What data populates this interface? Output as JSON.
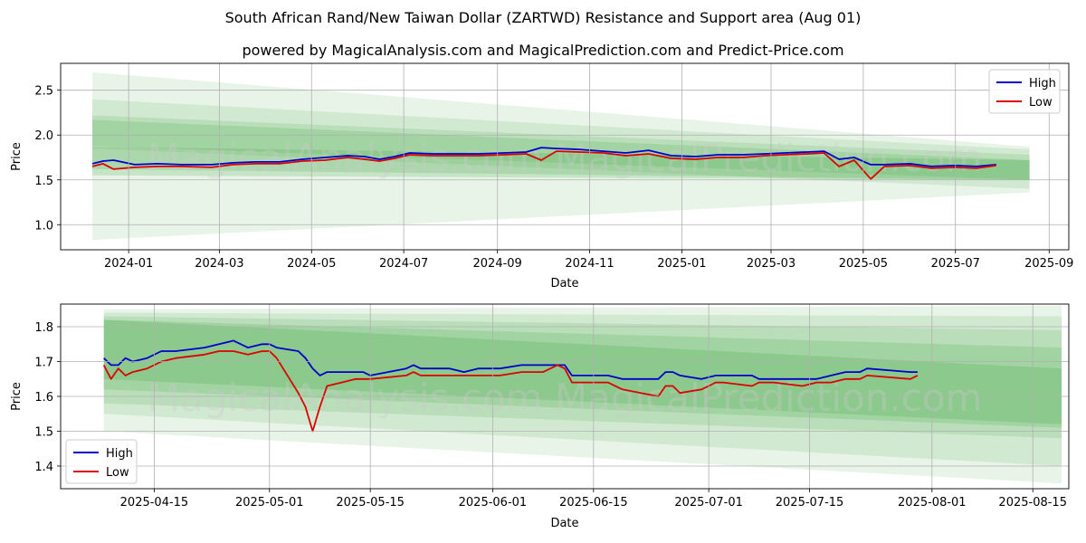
{
  "title": "South African Rand/New Taiwan Dollar (ZARTWD) Resistance and Support area (Aug 01)",
  "subtitle": "powered by MagicalAnalysis.com and MagicalPrediction.com and Predict-Price.com",
  "watermark": "MagicalAnalysis.com    MagicalPrediction.com",
  "colors": {
    "high": "#0000cc",
    "low": "#dd0000",
    "band": "#2e9a2e",
    "grid": "#b0b0b0"
  },
  "chart_data": [
    {
      "type": "line",
      "xlabel": "Date",
      "ylabel": "Price",
      "x_tick_labels": [
        "2024-01",
        "2024-03",
        "2024-05",
        "2024-07",
        "2024-09",
        "2024-11",
        "2025-01",
        "2025-03",
        "2025-05",
        "2025-07",
        "2025-09"
      ],
      "y_ticks": [
        1.0,
        1.5,
        2.0,
        2.5
      ],
      "y_tick_labels": [
        "1.0",
        "1.5",
        "2.0",
        "2.5"
      ],
      "xlim": [
        "2023-11-17",
        "2025-09-14"
      ],
      "ylim": [
        0.72,
        2.8
      ],
      "legend": "top-right",
      "grid": true,
      "series": [
        {
          "name": "High",
          "x": [
            "2023-12-08",
            "2023-12-15",
            "2023-12-22",
            "2024-01-05",
            "2024-01-20",
            "2024-02-05",
            "2024-02-25",
            "2024-03-10",
            "2024-03-25",
            "2024-04-10",
            "2024-04-25",
            "2024-05-10",
            "2024-05-25",
            "2024-06-05",
            "2024-06-15",
            "2024-06-25",
            "2024-07-05",
            "2024-07-20",
            "2024-08-05",
            "2024-08-20",
            "2024-09-05",
            "2024-09-20",
            "2024-09-30",
            "2024-10-10",
            "2024-10-25",
            "2024-11-10",
            "2024-11-25",
            "2024-12-10",
            "2024-12-25",
            "2025-01-10",
            "2025-01-25",
            "2025-02-10",
            "2025-02-25",
            "2025-03-10",
            "2025-03-25",
            "2025-04-05",
            "2025-04-15",
            "2025-04-25",
            "2025-05-06",
            "2025-05-15",
            "2025-06-01",
            "2025-06-15",
            "2025-07-01",
            "2025-07-15",
            "2025-07-28"
          ],
          "values": [
            1.68,
            1.71,
            1.72,
            1.67,
            1.68,
            1.67,
            1.67,
            1.69,
            1.7,
            1.7,
            1.73,
            1.75,
            1.77,
            1.76,
            1.73,
            1.76,
            1.8,
            1.79,
            1.79,
            1.79,
            1.8,
            1.81,
            1.86,
            1.85,
            1.84,
            1.82,
            1.8,
            1.83,
            1.77,
            1.76,
            1.78,
            1.78,
            1.79,
            1.8,
            1.81,
            1.82,
            1.73,
            1.75,
            1.67,
            1.67,
            1.68,
            1.65,
            1.66,
            1.65,
            1.67
          ]
        },
        {
          "name": "Low",
          "x": [
            "2023-12-08",
            "2023-12-15",
            "2023-12-22",
            "2024-01-05",
            "2024-01-20",
            "2024-02-05",
            "2024-02-25",
            "2024-03-10",
            "2024-03-25",
            "2024-04-10",
            "2024-04-25",
            "2024-05-10",
            "2024-05-25",
            "2024-06-05",
            "2024-06-15",
            "2024-06-25",
            "2024-07-05",
            "2024-07-20",
            "2024-08-05",
            "2024-08-20",
            "2024-09-05",
            "2024-09-20",
            "2024-09-30",
            "2024-10-10",
            "2024-10-25",
            "2024-11-10",
            "2024-11-25",
            "2024-12-10",
            "2024-12-25",
            "2025-01-10",
            "2025-01-25",
            "2025-02-10",
            "2025-02-25",
            "2025-03-10",
            "2025-03-25",
            "2025-04-05",
            "2025-04-15",
            "2025-04-25",
            "2025-05-06",
            "2025-05-15",
            "2025-06-01",
            "2025-06-15",
            "2025-07-01",
            "2025-07-15",
            "2025-07-28"
          ],
          "values": [
            1.65,
            1.68,
            1.62,
            1.64,
            1.65,
            1.65,
            1.64,
            1.67,
            1.68,
            1.68,
            1.71,
            1.72,
            1.75,
            1.73,
            1.71,
            1.74,
            1.78,
            1.77,
            1.77,
            1.77,
            1.78,
            1.79,
            1.72,
            1.82,
            1.81,
            1.8,
            1.77,
            1.79,
            1.74,
            1.73,
            1.75,
            1.75,
            1.77,
            1.78,
            1.79,
            1.8,
            1.65,
            1.72,
            1.51,
            1.65,
            1.66,
            1.63,
            1.64,
            1.63,
            1.66
          ]
        }
      ],
      "bands": [
        {
          "x": [
            "2023-12-08",
            "2025-08-19"
          ],
          "upper": [
            2.7,
            1.87
          ],
          "lower": [
            0.83,
            1.36
          ]
        },
        {
          "x": [
            "2023-12-08",
            "2025-08-19"
          ],
          "upper": [
            2.4,
            1.84
          ],
          "lower": [
            1.85,
            1.4
          ]
        },
        {
          "x": [
            "2023-12-08",
            "2025-08-19"
          ],
          "upper": [
            2.22,
            1.78
          ],
          "lower": [
            1.88,
            1.5
          ]
        },
        {
          "x": [
            "2023-12-08",
            "2025-08-19"
          ],
          "upper": [
            2.17,
            1.72
          ],
          "lower": [
            1.62,
            1.5
          ]
        },
        {
          "x": [
            "2023-12-08",
            "2025-08-19"
          ],
          "upper": [
            1.87,
            1.72
          ],
          "lower": [
            1.55,
            1.5
          ]
        }
      ]
    },
    {
      "type": "line",
      "xlabel": "Date",
      "ylabel": "Price",
      "x_tick_labels": [
        "2025-04-15",
        "2025-05-01",
        "2025-05-15",
        "2025-06-01",
        "2025-06-15",
        "2025-07-01",
        "2025-07-15",
        "2025-08-01",
        "2025-08-15"
      ],
      "y_ticks": [
        1.4,
        1.5,
        1.6,
        1.7,
        1.8
      ],
      "y_tick_labels": [
        "1.4",
        "1.5",
        "1.6",
        "1.7",
        "1.8"
      ],
      "xlim": [
        "2025-04-02",
        "2025-08-20"
      ],
      "ylim": [
        1.335,
        1.865
      ],
      "legend": "bottom-left",
      "grid": true,
      "series": [
        {
          "name": "High",
          "x": [
            "2025-04-08",
            "2025-04-09",
            "2025-04-10",
            "2025-04-11",
            "2025-04-12",
            "2025-04-14",
            "2025-04-16",
            "2025-04-18",
            "2025-04-22",
            "2025-04-24",
            "2025-04-26",
            "2025-04-28",
            "2025-04-30",
            "2025-05-01",
            "2025-05-02",
            "2025-05-05",
            "2025-05-06",
            "2025-05-07",
            "2025-05-08",
            "2025-05-09",
            "2025-05-13",
            "2025-05-14",
            "2025-05-15",
            "2025-05-20",
            "2025-05-21",
            "2025-05-22",
            "2025-05-26",
            "2025-05-28",
            "2025-05-30",
            "2025-06-02",
            "2025-06-05",
            "2025-06-08",
            "2025-06-10",
            "2025-06-11",
            "2025-06-12",
            "2025-06-17",
            "2025-06-19",
            "2025-06-24",
            "2025-06-25",
            "2025-06-26",
            "2025-06-27",
            "2025-06-30",
            "2025-07-02",
            "2025-07-03",
            "2025-07-07",
            "2025-07-08",
            "2025-07-10",
            "2025-07-14",
            "2025-07-16",
            "2025-07-18",
            "2025-07-20",
            "2025-07-22",
            "2025-07-23",
            "2025-07-29",
            "2025-07-30"
          ],
          "values": [
            1.71,
            1.69,
            1.69,
            1.71,
            1.7,
            1.71,
            1.73,
            1.73,
            1.74,
            1.75,
            1.76,
            1.74,
            1.75,
            1.75,
            1.74,
            1.73,
            1.71,
            1.68,
            1.66,
            1.67,
            1.67,
            1.67,
            1.66,
            1.68,
            1.69,
            1.68,
            1.68,
            1.67,
            1.68,
            1.68,
            1.69,
            1.69,
            1.69,
            1.69,
            1.66,
            1.66,
            1.65,
            1.65,
            1.67,
            1.67,
            1.66,
            1.65,
            1.66,
            1.66,
            1.66,
            1.65,
            1.65,
            1.65,
            1.65,
            1.66,
            1.67,
            1.67,
            1.68,
            1.67,
            1.67
          ]
        },
        {
          "name": "Low",
          "x": [
            "2025-04-08",
            "2025-04-09",
            "2025-04-10",
            "2025-04-11",
            "2025-04-12",
            "2025-04-14",
            "2025-04-16",
            "2025-04-18",
            "2025-04-22",
            "2025-04-24",
            "2025-04-26",
            "2025-04-28",
            "2025-04-30",
            "2025-05-01",
            "2025-05-02",
            "2025-05-05",
            "2025-05-06",
            "2025-05-07",
            "2025-05-08",
            "2025-05-09",
            "2025-05-13",
            "2025-05-14",
            "2025-05-15",
            "2025-05-20",
            "2025-05-21",
            "2025-05-22",
            "2025-05-26",
            "2025-05-28",
            "2025-05-30",
            "2025-06-02",
            "2025-06-05",
            "2025-06-08",
            "2025-06-10",
            "2025-06-11",
            "2025-06-12",
            "2025-06-17",
            "2025-06-19",
            "2025-06-24",
            "2025-06-25",
            "2025-06-26",
            "2025-06-27",
            "2025-06-30",
            "2025-07-02",
            "2025-07-03",
            "2025-07-07",
            "2025-07-08",
            "2025-07-10",
            "2025-07-14",
            "2025-07-16",
            "2025-07-18",
            "2025-07-20",
            "2025-07-22",
            "2025-07-23",
            "2025-07-29",
            "2025-07-30"
          ],
          "values": [
            1.69,
            1.65,
            1.68,
            1.66,
            1.67,
            1.68,
            1.7,
            1.71,
            1.72,
            1.73,
            1.73,
            1.72,
            1.73,
            1.73,
            1.71,
            1.61,
            1.57,
            1.5,
            1.57,
            1.63,
            1.65,
            1.65,
            1.65,
            1.66,
            1.67,
            1.66,
            1.66,
            1.66,
            1.66,
            1.66,
            1.67,
            1.67,
            1.69,
            1.68,
            1.64,
            1.64,
            1.62,
            1.6,
            1.63,
            1.63,
            1.61,
            1.62,
            1.64,
            1.64,
            1.63,
            1.64,
            1.64,
            1.63,
            1.64,
            1.64,
            1.65,
            1.65,
            1.66,
            1.65,
            1.66
          ]
        }
      ],
      "bands": [
        {
          "x": [
            "2025-04-08",
            "2025-08-19"
          ],
          "upper": [
            1.85,
            1.86
          ],
          "lower": [
            1.5,
            1.35
          ]
        },
        {
          "x": [
            "2025-04-08",
            "2025-08-19"
          ],
          "upper": [
            1.84,
            1.83
          ],
          "lower": [
            1.55,
            1.4
          ]
        },
        {
          "x": [
            "2025-04-08",
            "2025-08-19"
          ],
          "upper": [
            1.83,
            1.79
          ],
          "lower": [
            1.58,
            1.48
          ]
        },
        {
          "x": [
            "2025-04-08",
            "2025-08-19"
          ],
          "upper": [
            1.82,
            1.74
          ],
          "lower": [
            1.62,
            1.51
          ]
        },
        {
          "x": [
            "2025-04-08",
            "2025-08-19"
          ],
          "upper": [
            1.82,
            1.68
          ],
          "lower": [
            1.65,
            1.52
          ]
        }
      ]
    }
  ]
}
